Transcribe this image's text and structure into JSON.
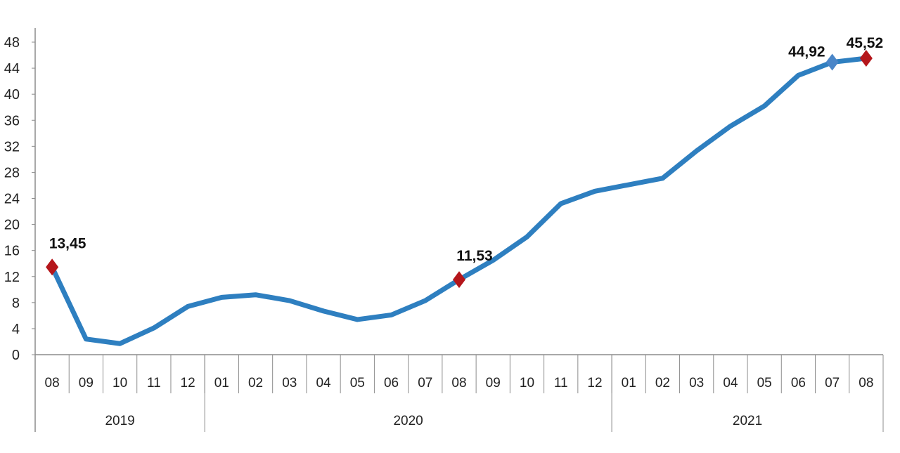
{
  "chart_data": {
    "type": "line",
    "title": "",
    "xlabel": "",
    "ylabel": "",
    "ylim": [
      0,
      48
    ],
    "yticks": [
      "0",
      "4",
      "8",
      "12",
      "16",
      "20",
      "24",
      "28",
      "32",
      "36",
      "40",
      "44",
      "48"
    ],
    "grid": false,
    "legend": "none",
    "categories": [
      "08",
      "09",
      "10",
      "11",
      "12",
      "01",
      "02",
      "03",
      "04",
      "05",
      "06",
      "07",
      "08",
      "09",
      "10",
      "11",
      "12",
      "01",
      "02",
      "03",
      "04",
      "05",
      "06",
      "07",
      "08"
    ],
    "years": [
      {
        "label": "2019",
        "start": 0,
        "end": 4
      },
      {
        "label": "2020",
        "start": 5,
        "end": 16
      },
      {
        "label": "2021",
        "start": 17,
        "end": 24
      }
    ],
    "series": [
      {
        "values": [
          13.45,
          2.4,
          1.7,
          4.1,
          7.4,
          8.8,
          9.2,
          8.3,
          6.7,
          5.4,
          6.1,
          8.3,
          11.53,
          14.5,
          18.1,
          23.2,
          25.1,
          26.1,
          27.1,
          31.3,
          35.1,
          38.2,
          42.9,
          44.92,
          45.52
        ],
        "color": "#2e7fc0"
      }
    ],
    "markers": [
      {
        "index": 0,
        "label": "13,45",
        "color": "#b5161b"
      },
      {
        "index": 12,
        "label": "11,53",
        "color": "#b5161b"
      },
      {
        "index": 23,
        "label": "44,92",
        "color": "#4a86c8"
      },
      {
        "index": 24,
        "label": "45,52",
        "color": "#b5161b"
      }
    ]
  }
}
